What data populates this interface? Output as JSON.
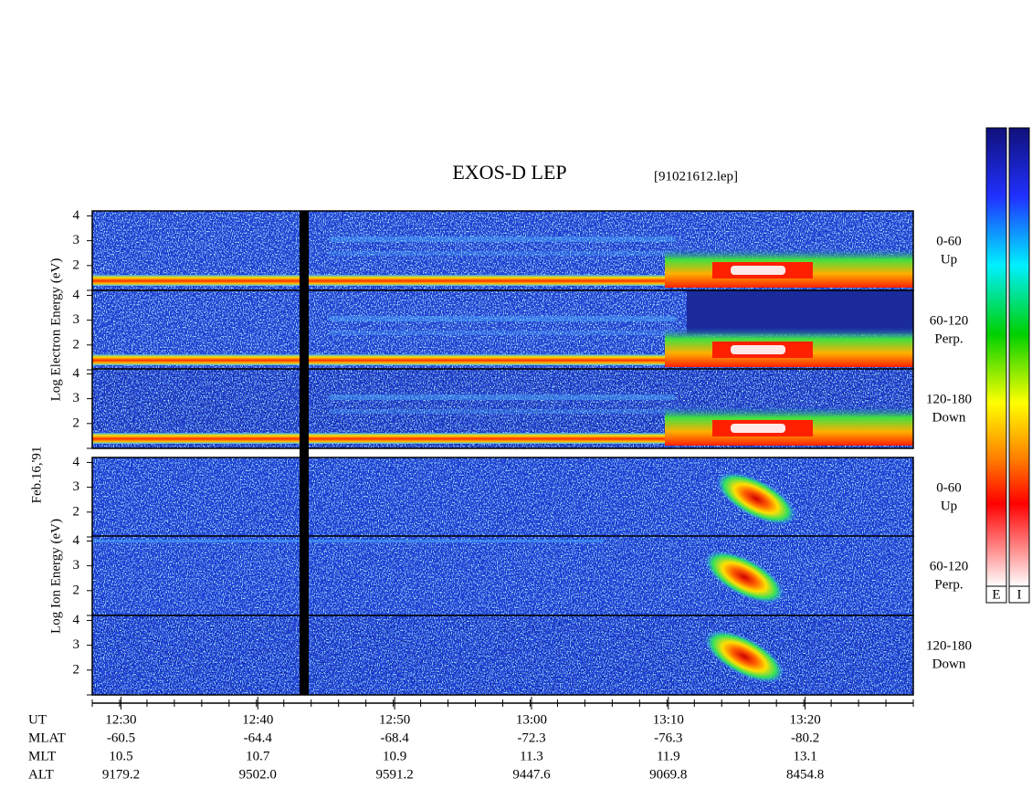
{
  "title": "EXOS-D LEP",
  "file": "[91021612.lep]",
  "date": "Feb.16,'91",
  "axes": {
    "ylim": [
      1,
      4.2
    ],
    "yticks": [
      2,
      3,
      4
    ],
    "xlim": [
      747.9,
      807.9
    ],
    "xticks": [
      {
        "value": 750,
        "label": "12:30"
      },
      {
        "value": 760,
        "label": "12:40"
      },
      {
        "value": 770,
        "label": "12:50"
      },
      {
        "value": 780,
        "label": "13:00"
      },
      {
        "value": 790,
        "label": "13:10"
      },
      {
        "value": 800,
        "label": "13:20"
      }
    ]
  },
  "electron": {
    "label": "Log  Electron  Energy (eV)",
    "panels": [
      {
        "angle": "0-60",
        "direction": "Up"
      },
      {
        "angle": "60-120",
        "direction": "Perp."
      },
      {
        "angle": "120-180",
        "direction": "Down"
      }
    ]
  },
  "ion": {
    "label": "Log  Ion  Energy (eV)",
    "panels": [
      {
        "angle": "0-60",
        "direction": "Up"
      },
      {
        "angle": "60-120",
        "direction": "Perp."
      },
      {
        "angle": "120-180",
        "direction": "Down"
      }
    ]
  },
  "rows": [
    {
      "label": "UT"
    },
    {
      "label": "MLAT",
      "values": [
        "-60.5",
        "-64.4",
        "-68.4",
        "-72.3",
        "-76.3",
        "-80.2"
      ]
    },
    {
      "label": "MLT",
      "values": [
        "10.5",
        "10.7",
        "10.9",
        "11.3",
        "11.9",
        "13.1"
      ]
    },
    {
      "label": "ALT",
      "values": [
        "9179.2",
        "9502.0",
        "9591.2",
        "9447.6",
        "9069.8",
        "8454.8"
      ]
    }
  ],
  "colorbars": [
    "E",
    "I"
  ]
}
